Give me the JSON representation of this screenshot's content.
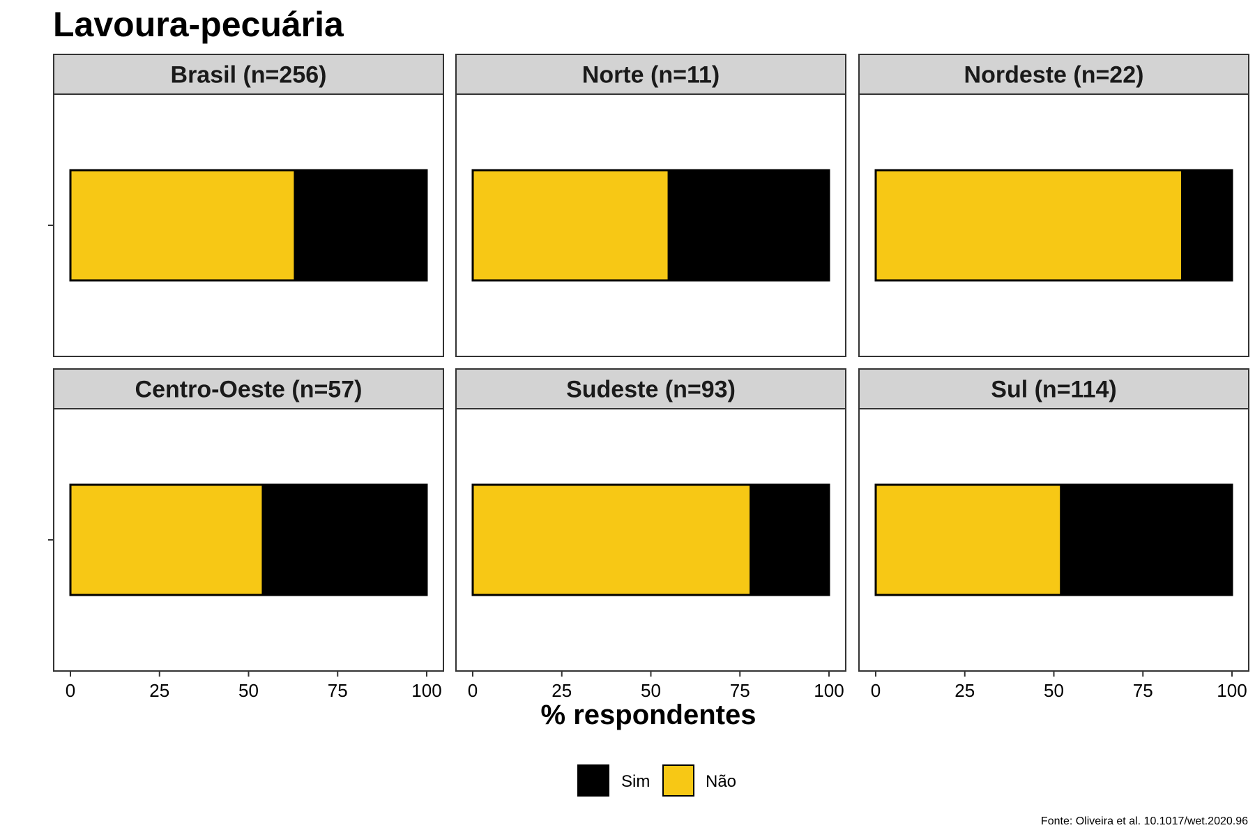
{
  "chart_data": {
    "type": "bar",
    "orientation": "horizontal",
    "stacked": true,
    "title": "Lavoura-pecuária",
    "xlabel": "% respondentes",
    "ylabel": "",
    "xlim": [
      0,
      100
    ],
    "x_ticks": [
      "0",
      "25",
      "50",
      "75",
      "100"
    ],
    "legend": {
      "position": "bottom",
      "entries": [
        {
          "label": "Sim",
          "color": "#000000"
        },
        {
          "label": "Não",
          "color": "#F7C815"
        }
      ]
    },
    "caption": "Fonte: Oliveira et al. 10.1017/wet.2020.96",
    "panels": [
      {
        "label": "Brasil (n=256)",
        "values": {
          "Não": 63,
          "Sim": 37
        }
      },
      {
        "label": "Norte (n=11)",
        "values": {
          "Não": 55,
          "Sim": 45
        }
      },
      {
        "label": "Nordeste (n=22)",
        "values": {
          "Não": 86,
          "Sim": 14
        }
      },
      {
        "label": "Centro-Oeste (n=57)",
        "values": {
          "Não": 54,
          "Sim": 46
        }
      },
      {
        "label": "Sudeste (n=93)",
        "values": {
          "Não": 78,
          "Sim": 22
        }
      },
      {
        "label": "Sul (n=114)",
        "values": {
          "Não": 52,
          "Sim": 48
        }
      }
    ]
  }
}
